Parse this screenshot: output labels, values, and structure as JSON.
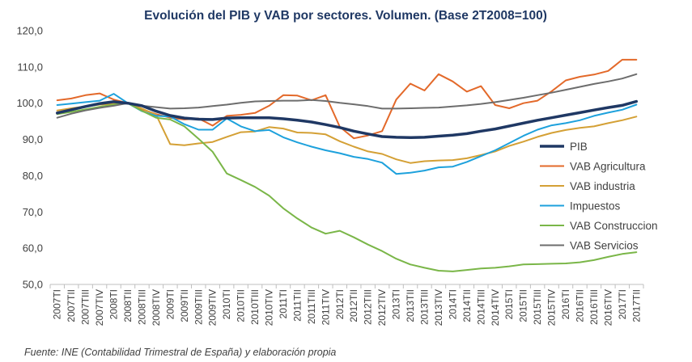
{
  "chart_data": {
    "type": "line",
    "title": "Evolución del PIB y VAB por sectores. Volumen. (Base 2T2008=100)",
    "source": "Fuente: INE (Contabilidad Trimestral de España) y elaboración propia",
    "xlabel": "",
    "ylabel": "",
    "ylim": [
      50,
      120
    ],
    "yticks": [
      "50,0",
      "60,0",
      "70,0",
      "80,0",
      "90,0",
      "100,0",
      "110,0",
      "120,0"
    ],
    "ytick_values": [
      50,
      60,
      70,
      80,
      90,
      100,
      110,
      120
    ],
    "grid": false,
    "legend_position": "right",
    "categories": [
      "2007TI",
      "2007TII",
      "2007TIII",
      "2007TIV",
      "2008TI",
      "2008TII",
      "2008TIII",
      "2008TIV",
      "2009TI",
      "2009TII",
      "2009TIII",
      "2009TIV",
      "2010TI",
      "2010TII",
      "2010TIII",
      "2010TIV",
      "2011TI",
      "2011TII",
      "2011TIII",
      "2011TIV",
      "2012TI",
      "2012TII",
      "2012TIII",
      "2012TIV",
      "2013TI",
      "2013TII",
      "2013TIII",
      "2013TIV",
      "2014TI",
      "2014TII",
      "2014TIII",
      "2014TIV",
      "2015TI",
      "2015TII",
      "2015TIII",
      "2015TIV",
      "2016TI",
      "2016TII",
      "2016TIII",
      "2016TIV",
      "2017TI",
      "2017TII"
    ],
    "series": [
      {
        "name": "PIB",
        "color": "#1f3864",
        "width": 3.5,
        "values": [
          97.3,
          98.2,
          99.1,
          99.9,
          100.4,
          100.0,
          99.3,
          97.8,
          96.6,
          95.9,
          95.6,
          95.5,
          95.9,
          96.0,
          96.0,
          96.0,
          95.7,
          95.3,
          94.8,
          94.1,
          93.3,
          92.3,
          91.5,
          90.8,
          90.6,
          90.5,
          90.6,
          90.9,
          91.2,
          91.6,
          92.3,
          92.9,
          93.7,
          94.5,
          95.3,
          96.0,
          96.7,
          97.4,
          98.1,
          98.8,
          99.4,
          100.5
        ]
      },
      {
        "name": "VAB Agricultura",
        "color": "#e3692a",
        "width": 2,
        "values": [
          100.8,
          101.3,
          102.2,
          102.7,
          101.0,
          100.0,
          98.3,
          97.0,
          96.0,
          95.5,
          95.8,
          93.8,
          96.5,
          96.8,
          97.3,
          99.3,
          102.2,
          102.1,
          100.8,
          102.2,
          93.5,
          90.3,
          91.1,
          92.3,
          101.0,
          105.4,
          103.5,
          108.0,
          106.0,
          103.2,
          104.7,
          99.5,
          98.6,
          100.0,
          100.7,
          103.3,
          106.3,
          107.3,
          107.9,
          108.9,
          112.0,
          112.0
        ]
      },
      {
        "name": "VAB industria",
        "color": "#d4a035",
        "width": 2,
        "values": [
          98.0,
          98.6,
          99.1,
          99.6,
          99.8,
          100.0,
          98.5,
          96.8,
          88.7,
          88.4,
          88.9,
          89.3,
          90.7,
          92.0,
          92.2,
          93.4,
          93.0,
          91.9,
          91.8,
          91.4,
          89.5,
          88.0,
          86.7,
          86.0,
          84.5,
          83.5,
          84.0,
          84.2,
          84.3,
          84.8,
          85.7,
          86.7,
          88.2,
          89.4,
          90.7,
          91.8,
          92.6,
          93.2,
          93.6,
          94.5,
          95.3,
          96.3
        ]
      },
      {
        "name": "Impuestos",
        "color": "#1da1dc",
        "width": 2,
        "values": [
          99.5,
          99.9,
          100.3,
          100.7,
          102.6,
          100.0,
          97.8,
          96.5,
          96.3,
          94.2,
          92.7,
          92.7,
          95.8,
          93.6,
          92.3,
          92.6,
          90.6,
          89.2,
          88.0,
          87.0,
          86.2,
          85.2,
          84.6,
          83.6,
          80.5,
          80.8,
          81.4,
          82.3,
          82.5,
          83.8,
          85.4,
          87.0,
          89.0,
          91.0,
          92.7,
          93.9,
          94.5,
          95.3,
          96.5,
          97.4,
          98.2,
          99.6
        ]
      },
      {
        "name": "VAB Construccion",
        "color": "#7ab648",
        "width": 2,
        "values": [
          97.0,
          97.6,
          98.3,
          99.0,
          99.6,
          100.0,
          97.9,
          96.0,
          95.5,
          93.6,
          90.2,
          86.6,
          80.6,
          78.8,
          76.9,
          74.5,
          71.0,
          68.2,
          65.7,
          64.0,
          64.8,
          63.0,
          61.0,
          59.2,
          57.1,
          55.5,
          54.6,
          53.8,
          53.6,
          54.0,
          54.4,
          54.6,
          55.0,
          55.5,
          55.6,
          55.7,
          55.8,
          56.1,
          56.7,
          57.6,
          58.4,
          58.9
        ]
      },
      {
        "name": "VAB Servicios",
        "color": "#6d6d6d",
        "width": 2,
        "values": [
          96.0,
          97.1,
          98.0,
          98.7,
          99.3,
          100.0,
          99.3,
          98.9,
          98.5,
          98.6,
          98.8,
          99.2,
          99.6,
          100.1,
          100.5,
          100.6,
          100.7,
          100.7,
          100.9,
          100.6,
          100.1,
          99.7,
          99.2,
          98.5,
          98.5,
          98.6,
          98.7,
          98.8,
          99.1,
          99.4,
          99.8,
          100.3,
          100.9,
          101.5,
          102.2,
          102.9,
          103.7,
          104.5,
          105.3,
          106.0,
          106.8,
          108.0
        ]
      }
    ]
  }
}
